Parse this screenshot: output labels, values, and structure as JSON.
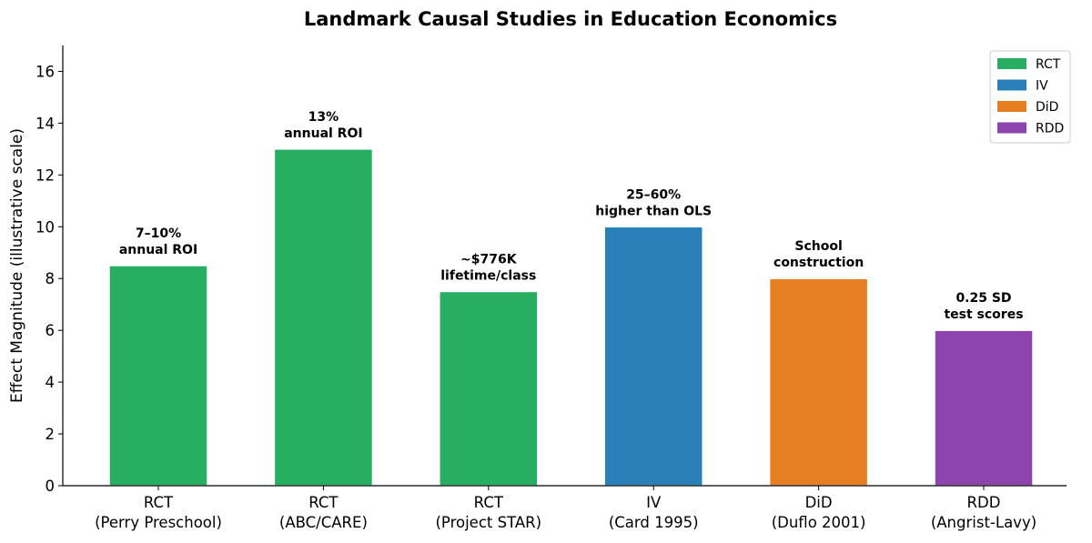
{
  "chart_data": {
    "type": "bar",
    "title": "Landmark Causal Studies in Education Economics",
    "xlabel": "",
    "ylabel": "Effect Magnitude (illustrative scale)",
    "ylim": [
      0,
      17
    ],
    "yticks": [
      0,
      2,
      4,
      6,
      8,
      10,
      12,
      14,
      16
    ],
    "grid": false,
    "legend_position": "top-right",
    "categories": [
      {
        "method": "RCT",
        "study": "(Perry Preschool)"
      },
      {
        "method": "RCT",
        "study": "(ABC/CARE)"
      },
      {
        "method": "RCT",
        "study": "(Project STAR)"
      },
      {
        "method": "IV",
        "study": "(Card 1995)"
      },
      {
        "method": "DiD",
        "study": "(Duflo 2001)"
      },
      {
        "method": "RDD",
        "study": "(Angrist-Lavy)"
      }
    ],
    "values": [
      8.5,
      13,
      7.5,
      10,
      8,
      6
    ],
    "bar_methods": [
      "RCT",
      "RCT",
      "RCT",
      "IV",
      "DiD",
      "RDD"
    ],
    "data_labels": [
      [
        "7–10%",
        "annual ROI"
      ],
      [
        "13%",
        "annual ROI"
      ],
      [
        "~$776K",
        "lifetime/class"
      ],
      [
        "25–60%",
        "higher than OLS"
      ],
      [
        "School",
        "construction"
      ],
      [
        "0.25 SD",
        "test scores"
      ]
    ],
    "legend": [
      {
        "name": "RCT",
        "color": "#27ae60"
      },
      {
        "name": "IV",
        "color": "#2980b9"
      },
      {
        "name": "DiD",
        "color": "#e67e22"
      },
      {
        "name": "RDD",
        "color": "#8e44ad"
      }
    ]
  }
}
